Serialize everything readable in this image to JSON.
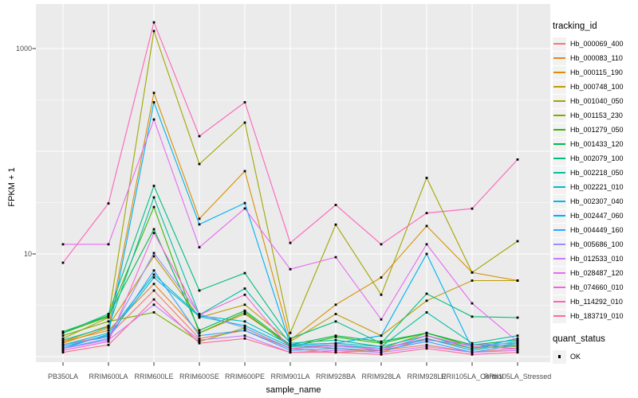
{
  "legend": {
    "tracking_title": "tracking_id",
    "quant_title": "quant_status",
    "quant_ok_label": "OK"
  },
  "colors": {
    "panel_background": "#EBEBEB",
    "gridline": "#FFFFFF",
    "axis_tick": "#333333",
    "tick_label": "#4D4D4D",
    "axis_title": "#000000",
    "legend_key_background": "#F2F2F2",
    "point": "#000000",
    "figure_background": "#FFFFFF"
  },
  "chart_data": {
    "type": "line",
    "title": "",
    "xlabel": "sample_name",
    "ylabel": "FPKM + 1",
    "y_scale": "log10",
    "ylim": [
      1,
      2000
    ],
    "grid": true,
    "legend_position": "right",
    "point_marker": {
      "shape": "square",
      "color": "#000000",
      "meaning": "OK"
    },
    "y_ticks": [
      {
        "value": 10,
        "label": "10"
      },
      {
        "value": 1000,
        "label": "1000"
      }
    ],
    "y_major_gridlines": [
      1,
      10,
      100,
      1000
    ],
    "y_minor_gridlines": [
      3.162,
      31.62,
      316.2
    ],
    "categories": [
      "PB350LA",
      "RRIM600LA",
      "RRIM600LE",
      "RRIM600SE",
      "RRIM600PE",
      "RRIM901LA",
      "RRIM928BA",
      "RRIM928LA",
      "RRIM928LE",
      "RRII105LA_Control",
      "RRII105LA_Stressed"
    ],
    "series": [
      {
        "name": "Hb_000069_400",
        "color": "#F8766D",
        "values": [
          1.3,
          1.6,
          4.4,
          1.5,
          1.8,
          1.2,
          1.1,
          1.15,
          1.3,
          1.1,
          1.2
        ]
      },
      {
        "name": "Hb_000083_110",
        "color": "#E88526",
        "values": [
          1.4,
          1.8,
          5.1,
          1.7,
          2.6,
          1.3,
          1.2,
          1.1,
          1.5,
          1.2,
          1.3
        ]
      },
      {
        "name": "Hb_000115_190",
        "color": "#D89000",
        "values": [
          1.35,
          1.9,
          370,
          22,
          64,
          1.45,
          3.2,
          5.9,
          18.7,
          6.6,
          5.5
        ]
      },
      {
        "name": "Hb_000748_100",
        "color": "#C09B00",
        "values": [
          1.4,
          2.0,
          9.5,
          2.4,
          3.2,
          1.4,
          2.6,
          1.6,
          3.5,
          5.5,
          5.5
        ]
      },
      {
        "name": "Hb_001040_050",
        "color": "#A3A500",
        "values": [
          1.5,
          2.4,
          1480,
          75,
          190,
          1.7,
          19.3,
          4.0,
          55,
          6.6,
          13.3
        ]
      },
      {
        "name": "Hb_001153_230",
        "color": "#7CAE00",
        "values": [
          1.6,
          2.2,
          2.7,
          1.4,
          1.9,
          1.2,
          1.3,
          1.2,
          1.7,
          1.3,
          1.25
        ]
      },
      {
        "name": "Hb_001279_050",
        "color": "#39B600",
        "values": [
          1.7,
          2.45,
          28.6,
          1.7,
          2.7,
          1.25,
          1.55,
          1.35,
          1.7,
          1.25,
          1.2
        ]
      },
      {
        "name": "Hb_001433_120",
        "color": "#00BB4E",
        "values": [
          1.75,
          2.5,
          17.4,
          1.8,
          2.8,
          1.3,
          1.6,
          1.4,
          1.7,
          1.3,
          1.45
        ]
      },
      {
        "name": "Hb_002079_100",
        "color": "#00BF7D",
        "values": [
          1.7,
          2.6,
          46,
          4.4,
          6.5,
          1.5,
          2.2,
          1.35,
          4.1,
          2.45,
          2.4
        ]
      },
      {
        "name": "Hb_002218_050",
        "color": "#00C1A3",
        "values": [
          1.45,
          1.95,
          35.5,
          2.55,
          4.6,
          1.35,
          1.45,
          1.25,
          2.7,
          1.35,
          1.6
        ]
      },
      {
        "name": "Hb_002221_010",
        "color": "#00BFC4",
        "values": [
          1.3,
          1.7,
          6.3,
          2.5,
          2.2,
          1.3,
          1.35,
          1.25,
          1.6,
          1.2,
          1.4
        ]
      },
      {
        "name": "Hb_002307_040",
        "color": "#00BAE0",
        "values": [
          1.25,
          1.6,
          5.9,
          2.45,
          2.0,
          1.25,
          1.3,
          1.2,
          1.5,
          1.15,
          1.35
        ]
      },
      {
        "name": "Hb_002447_060",
        "color": "#00B0F6",
        "values": [
          1.2,
          1.65,
          300,
          19.4,
          31.3,
          1.3,
          1.35,
          1.6,
          10.0,
          1.2,
          1.5
        ]
      },
      {
        "name": "Hb_004449_160",
        "color": "#35A2FF",
        "values": [
          1.2,
          1.5,
          6.9,
          1.6,
          1.8,
          1.15,
          1.2,
          1.15,
          1.4,
          1.1,
          1.3
        ]
      },
      {
        "name": "Hb_005686_100",
        "color": "#9590FF",
        "values": [
          1.3,
          1.55,
          10.2,
          2.6,
          1.9,
          1.2,
          1.25,
          1.2,
          1.45,
          1.3,
          1.35
        ]
      },
      {
        "name": "Hb_012533_010",
        "color": "#C77CFF",
        "values": [
          1.2,
          1.45,
          3.2,
          1.45,
          1.6,
          1.1,
          1.15,
          1.1,
          1.25,
          1.1,
          1.15
        ]
      },
      {
        "name": "Hb_028487_120",
        "color": "#E76BF3",
        "values": [
          12.4,
          12.4,
          204,
          11.6,
          27.7,
          7.1,
          9.3,
          2.3,
          12.4,
          3.3,
          1.4
        ]
      },
      {
        "name": "Hb_074660_010",
        "color": "#FA62DB",
        "values": [
          1.15,
          1.4,
          16,
          2.55,
          4.0,
          1.2,
          1.3,
          1.15,
          1.6,
          1.25,
          1.2
        ]
      },
      {
        "name": "Hb_114292_010",
        "color": "#FF62BC",
        "values": [
          8.2,
          31,
          1800,
          140,
          300,
          12.8,
          30,
          12.4,
          25,
          27.6,
          83
        ]
      },
      {
        "name": "Hb_183719_010",
        "color": "#FF6A98",
        "values": [
          1.1,
          1.3,
          3.6,
          1.35,
          1.5,
          1.1,
          1.1,
          1.05,
          1.2,
          1.05,
          1.1
        ]
      }
    ]
  }
}
